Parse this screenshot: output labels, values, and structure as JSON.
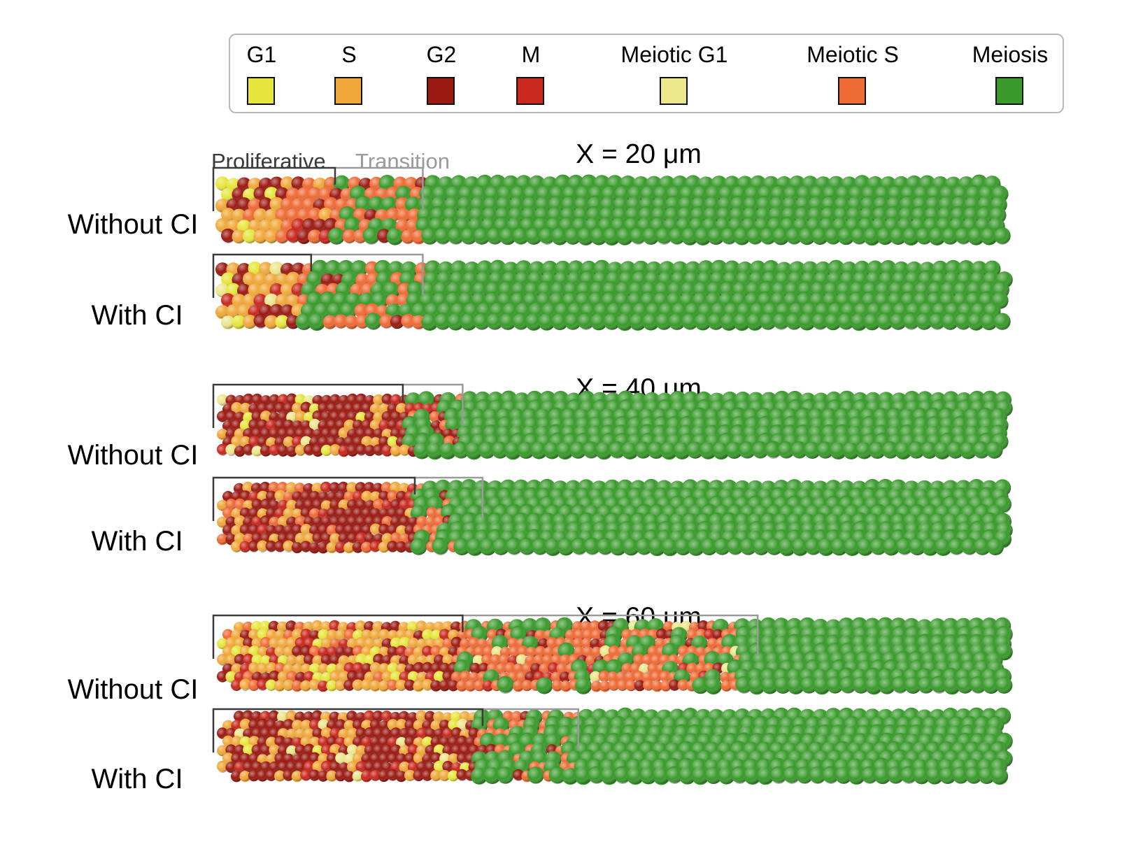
{
  "legend": {
    "items": [
      {
        "label": "G1",
        "color": "#e6e63c"
      },
      {
        "label": "S",
        "color": "#f0a83a"
      },
      {
        "label": "G2",
        "color": "#9b1a12"
      },
      {
        "label": "M",
        "color": "#c8281e"
      },
      {
        "label": "Meiotic G1",
        "color": "#ece68c"
      },
      {
        "label": "Meiotic S",
        "color": "#ee6b35"
      },
      {
        "label": "Meiosis",
        "color": "#3a9a2c"
      }
    ]
  },
  "bracket_labels": {
    "proliferative": "Proliferative",
    "transition": "Transition"
  },
  "panels": [
    {
      "title": "X = 20 μm",
      "rows": [
        {
          "label": "Without CI",
          "prolif_end": 0.15,
          "trans_end": 0.26,
          "mix": [
            [
              0.0,
              0.08,
              "S"
            ],
            [
              0.08,
              0.15,
              "MS"
            ],
            [
              0.15,
              0.26,
              "T1"
            ],
            [
              0.26,
              1.0,
              "G"
            ]
          ]
        },
        {
          "label": "With CI",
          "prolif_end": 0.12,
          "trans_end": 0.26,
          "mix": [
            [
              0.0,
              0.11,
              "P1"
            ],
            [
              0.11,
              0.26,
              "T2"
            ],
            [
              0.26,
              1.0,
              "G"
            ]
          ]
        }
      ]
    },
    {
      "title": "X = 40 μm",
      "rows": [
        {
          "label": "Without CI",
          "prolif_end": 0.235,
          "trans_end": 0.31,
          "mix": [
            [
              0.0,
              0.24,
              "R"
            ],
            [
              0.24,
              0.31,
              "T3"
            ],
            [
              0.31,
              1.0,
              "G"
            ]
          ]
        },
        {
          "label": "With CI",
          "prolif_end": 0.25,
          "trans_end": 0.335,
          "mix": [
            [
              0.0,
              0.25,
              "R2"
            ],
            [
              0.25,
              0.3,
              "T1"
            ],
            [
              0.3,
              1.0,
              "G"
            ]
          ]
        }
      ]
    },
    {
      "title": "X = 60 μm",
      "rows": [
        {
          "label": "Without CI",
          "prolif_end": 0.31,
          "trans_end": 0.68,
          "mix": [
            [
              0.0,
              0.3,
              "P2"
            ],
            [
              0.3,
              0.66,
              "T4"
            ],
            [
              0.66,
              1.0,
              "G"
            ]
          ]
        },
        {
          "label": "With CI",
          "prolif_end": 0.335,
          "trans_end": 0.455,
          "mix": [
            [
              0.0,
              0.33,
              "R3"
            ],
            [
              0.33,
              0.455,
              "T2"
            ],
            [
              0.455,
              1.0,
              "G"
            ]
          ]
        }
      ]
    }
  ]
}
